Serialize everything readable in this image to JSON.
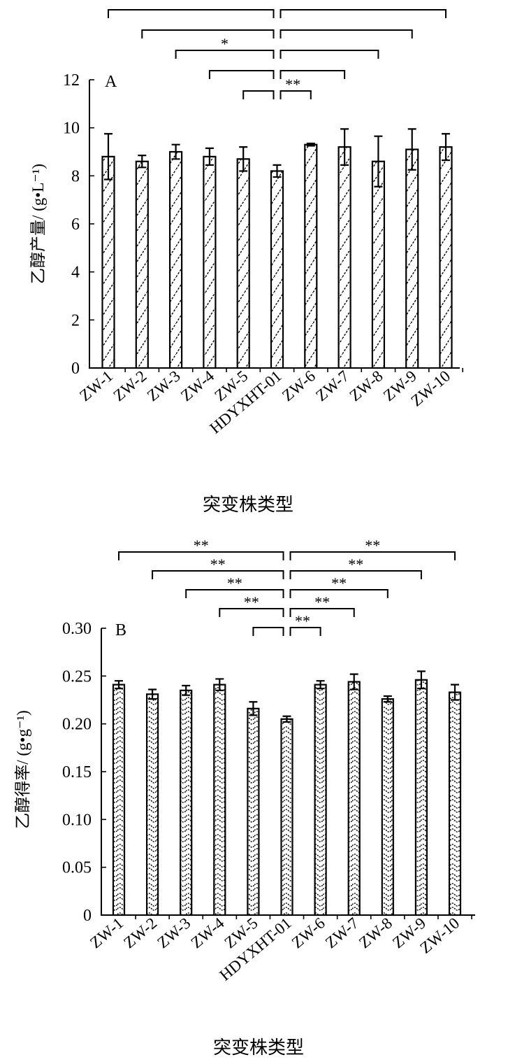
{
  "chart_data": [
    {
      "type": "bar",
      "panel_label": "A",
      "categories": [
        "ZW-1",
        "ZW-2",
        "ZW-3",
        "ZW-4",
        "ZW-5",
        "HDYXHT-01",
        "ZW-6",
        "ZW-7",
        "ZW-8",
        "ZW-9",
        "ZW-10"
      ],
      "values": [
        8.8,
        8.6,
        9.0,
        8.8,
        8.7,
        8.2,
        9.3,
        9.2,
        8.6,
        9.1,
        9.2
      ],
      "errors": [
        0.95,
        0.25,
        0.3,
        0.35,
        0.5,
        0.25,
        0.05,
        0.75,
        1.05,
        0.85,
        0.55
      ],
      "ylim": [
        0,
        12
      ],
      "yticks": [
        "0",
        "2",
        "4",
        "6",
        "8",
        "10",
        "12"
      ],
      "ytick_values": [
        0,
        2,
        4,
        6,
        8,
        10,
        12
      ],
      "ylabel": "乙醇产量/ (g•L⁻¹)",
      "xlabel": "突变株类型",
      "significance": [
        {
          "from": 0,
          "to": 5,
          "label": ""
        },
        {
          "from": 1,
          "to": 5,
          "label": ""
        },
        {
          "from": 2,
          "to": 5,
          "label": "*"
        },
        {
          "from": 3,
          "to": 5,
          "label": ""
        },
        {
          "from": 4,
          "to": 5,
          "label": ""
        },
        {
          "from": 5,
          "to": 6,
          "label": "**"
        },
        {
          "from": 5,
          "to": 7,
          "label": ""
        },
        {
          "from": 5,
          "to": 8,
          "label": ""
        },
        {
          "from": 5,
          "to": 9,
          "label": ""
        },
        {
          "from": 5,
          "to": 10,
          "label": ""
        }
      ]
    },
    {
      "type": "bar",
      "panel_label": "B",
      "categories": [
        "ZW-1",
        "ZW-2",
        "ZW-3",
        "ZW-4",
        "ZW-5",
        "HDYXHT-01",
        "ZW-6",
        "ZW-7",
        "ZW-8",
        "ZW-9",
        "ZW-10"
      ],
      "values": [
        0.241,
        0.231,
        0.235,
        0.241,
        0.216,
        0.205,
        0.241,
        0.244,
        0.226,
        0.246,
        0.233
      ],
      "errors": [
        0.004,
        0.005,
        0.005,
        0.006,
        0.007,
        0.003,
        0.004,
        0.008,
        0.003,
        0.009,
        0.008
      ],
      "ylim": [
        0,
        0.3
      ],
      "yticks": [
        "0",
        "0.05",
        "0.10",
        "0.15",
        "0.20",
        "0.25",
        "0.30"
      ],
      "ytick_values": [
        0,
        0.05,
        0.1,
        0.15,
        0.2,
        0.25,
        0.3
      ],
      "ylabel": "乙醇得率/ (g•g⁻¹)",
      "xlabel": "突变株类型",
      "significance": [
        {
          "from": 0,
          "to": 5,
          "label": "**"
        },
        {
          "from": 1,
          "to": 5,
          "label": "**"
        },
        {
          "from": 2,
          "to": 5,
          "label": "**"
        },
        {
          "from": 3,
          "to": 5,
          "label": "**"
        },
        {
          "from": 4,
          "to": 5,
          "label": ""
        },
        {
          "from": 5,
          "to": 6,
          "label": "**"
        },
        {
          "from": 5,
          "to": 7,
          "label": "**"
        },
        {
          "from": 5,
          "to": 8,
          "label": "**"
        },
        {
          "from": 5,
          "to": 9,
          "label": "**"
        },
        {
          "from": 5,
          "to": 10,
          "label": "**"
        }
      ]
    }
  ]
}
